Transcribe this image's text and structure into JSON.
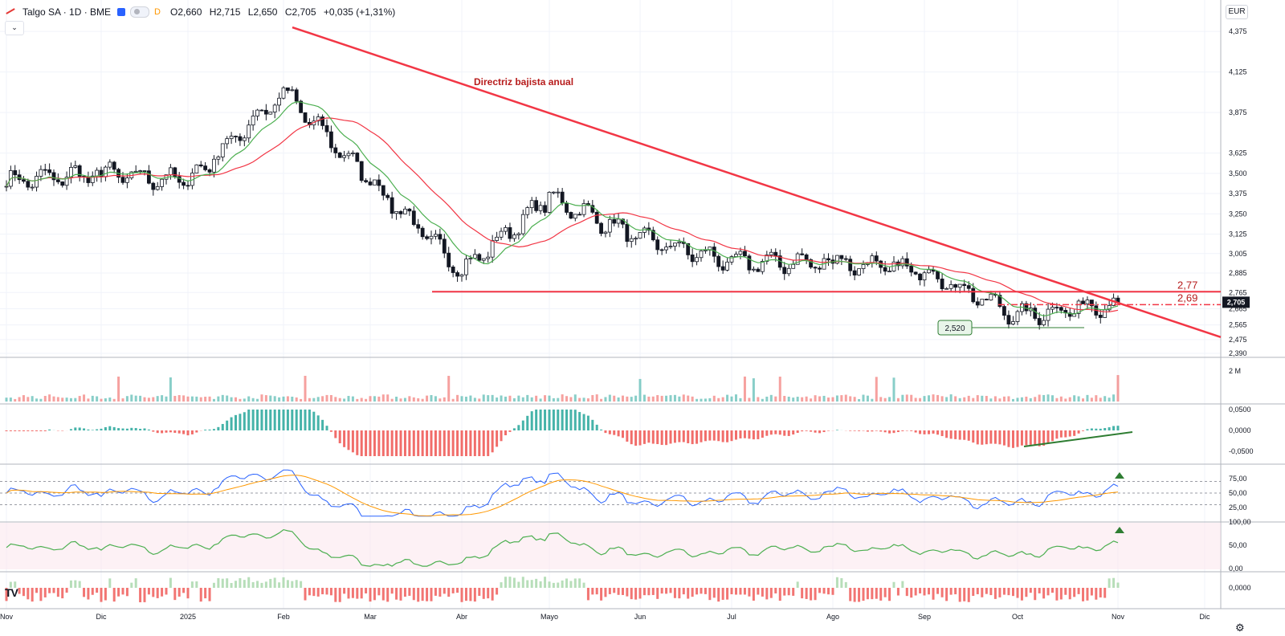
{
  "header": {
    "title": "Talgo SA · 1D · BME",
    "d_badge": "D",
    "open_label": "O",
    "open": "2,660",
    "high_label": "H",
    "high": "2,715",
    "low_label": "L",
    "low": "2,650",
    "close_label": "C",
    "close": "2,705",
    "change": "+0,035 (+1,31%)"
  },
  "collapse_glyph": "⌄",
  "currency": "EUR",
  "tv_logo": "TV",
  "gear_glyph": "⚙",
  "colors": {
    "up": "#131722",
    "down": "#131722",
    "trend": "#f23645",
    "sma_fast": "#4caf50",
    "sma_slow": "#f23645",
    "vol_up": "#26a69a",
    "vol_down": "#ef5350",
    "macd_pos": "#26a69a",
    "macd_neg": "#ef5350",
    "rsi": "#2962ff",
    "rsi_ma": "#ff9800",
    "green_arrow": "#2e7d32",
    "label_red": "#b71c1c"
  },
  "chart_data": [
    {
      "type": "candlestick",
      "title": "Talgo SA · 1D · BME",
      "currency": "EUR",
      "x_tick_labels": [
        "Nov",
        "Dic",
        "2025",
        "Feb",
        "Mar",
        "Abr",
        "Mayo",
        "Jun",
        "Jul",
        "Ago",
        "Sep",
        "Oct",
        "Nov",
        "Dic"
      ],
      "y_tick_labels": [
        "4,375",
        "4,125",
        "3,875",
        "3,625",
        "3,500",
        "3,375",
        "3,250",
        "3,125",
        "3,005",
        "2,885",
        "2,765",
        "2,665",
        "2,565",
        "2,475",
        "2,390"
      ],
      "y_range": [
        2.39,
        4.42
      ],
      "last_price": "2,705",
      "annotations": {
        "trendline_label": "Directriz bajista anual",
        "support_level": "2,77",
        "resistance_level": "2,69",
        "low_marker": "2,520"
      },
      "series_close_monthly": [
        {
          "month": "Nov",
          "value": 3.45
        },
        {
          "month": "Dic",
          "value": 3.5
        },
        {
          "month": "2025",
          "value": 3.45
        },
        {
          "month": "Feb",
          "value": 4.0
        },
        {
          "month": "Mar",
          "value": 3.45
        },
        {
          "month": "Abr",
          "value": 2.9
        },
        {
          "month": "Mayo",
          "value": 3.35
        },
        {
          "month": "Jun",
          "value": 3.1
        },
        {
          "month": "Jul",
          "value": 2.95
        },
        {
          "month": "Ago",
          "value": 2.95
        },
        {
          "month": "Sep",
          "value": 2.9
        },
        {
          "month": "Oct",
          "value": 2.62
        },
        {
          "month": "Nov",
          "value": 2.705
        }
      ]
    },
    {
      "type": "bar",
      "name": "volume",
      "y_tick_labels": [
        "2 M"
      ]
    },
    {
      "type": "bar",
      "name": "macd_histogram",
      "y_tick_labels": [
        "0,0500",
        "0,0000",
        "-0,0500"
      ]
    },
    {
      "type": "line",
      "name": "rsi",
      "y_tick_labels": [
        "75,00",
        "50,00",
        "25,00"
      ],
      "ylim": [
        0,
        100
      ]
    },
    {
      "type": "area",
      "name": "oscillator",
      "y_tick_labels": [
        "100,00",
        "50,00",
        "0,00"
      ],
      "ylim": [
        0,
        100
      ]
    },
    {
      "type": "bar",
      "name": "bottom_histogram",
      "y_tick_labels": [
        "0,0000"
      ]
    }
  ]
}
